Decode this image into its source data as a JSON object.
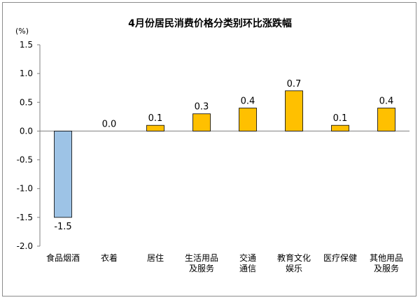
{
  "chart_data": {
    "type": "bar",
    "title": "4月份居民消费价格分类别环比涨跌幅",
    "unit_label": "(%)",
    "categories": [
      [
        "食品烟酒"
      ],
      [
        "衣着"
      ],
      [
        "居住"
      ],
      [
        "生活用品",
        "及服务"
      ],
      [
        "交通",
        "通信"
      ],
      [
        "教育文化",
        "娱乐"
      ],
      [
        "医疗保健"
      ],
      [
        "其他用品",
        "及服务"
      ]
    ],
    "values": [
      -1.5,
      0.0,
      0.1,
      0.3,
      0.4,
      0.7,
      0.1,
      0.4
    ],
    "value_labels": [
      "-1.5",
      "0.0",
      "0.1",
      "0.3",
      "0.4",
      "0.7",
      "0.1",
      "0.4"
    ],
    "y_ticks": [
      "1.5",
      "1.0",
      "0.5",
      "0.0",
      "-0.5",
      "-1.0",
      "-1.5",
      "-2.0"
    ],
    "ylim": [
      -2.0,
      1.5
    ],
    "grid": false,
    "legend": "none",
    "colors": {
      "positive_fill": "#ffc000",
      "positive_stroke": "#000000",
      "negative_fill": "#9dc3e6",
      "negative_stroke": "#000000",
      "axis": "#7f7f7f",
      "text": "#000000"
    }
  }
}
